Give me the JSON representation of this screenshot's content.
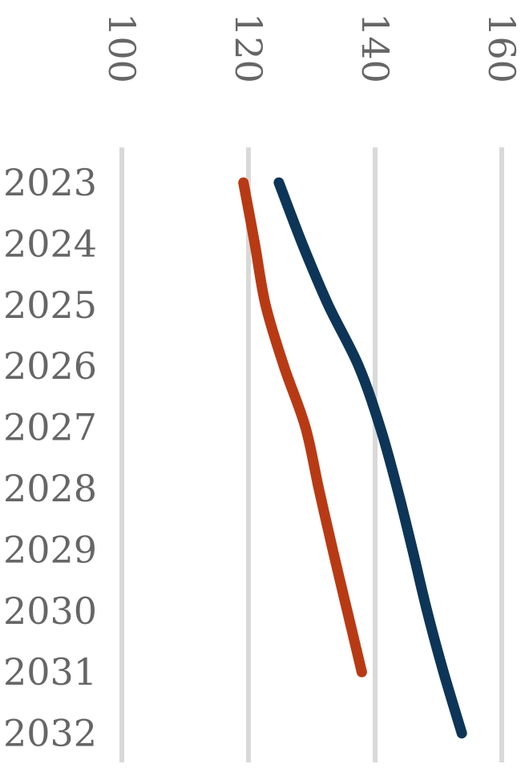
{
  "chart_data": {
    "type": "line",
    "orientation": "vertical-time-axis",
    "x_ticks": [
      100,
      120,
      140,
      160
    ],
    "x_tick_labels": [
      "100",
      "120",
      "140",
      "160"
    ],
    "xlim": [
      100,
      160
    ],
    "categories": [
      "2023",
      "2024",
      "2025",
      "2026",
      "2027",
      "2028",
      "2029",
      "2030",
      "2031",
      "2032"
    ],
    "grid": true,
    "series": [
      {
        "color": "#b83a14",
        "values": [
          119.2,
          121.0,
          122.7,
          125.6,
          129.0,
          131.1,
          133.3,
          135.6,
          137.9,
          null
        ]
      },
      {
        "color": "#0d3557",
        "values": [
          124.8,
          128.5,
          132.6,
          137.4,
          140.8,
          143.5,
          145.9,
          148.2,
          150.8,
          153.7
        ]
      }
    ]
  }
}
